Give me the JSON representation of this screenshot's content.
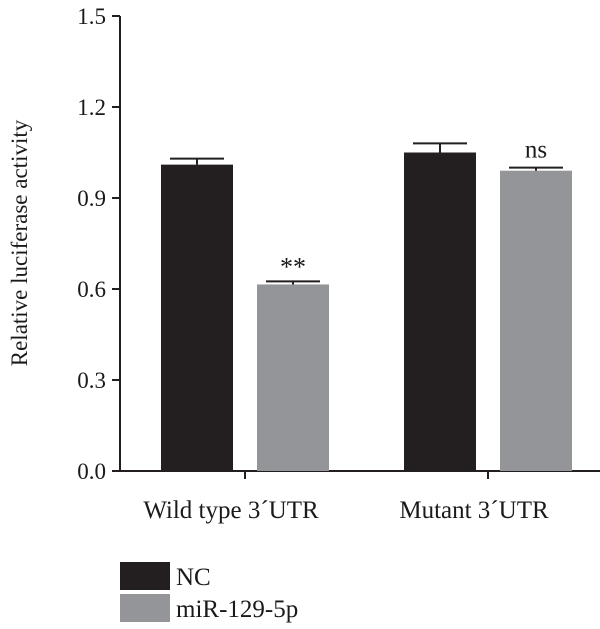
{
  "chart_data": {
    "type": "bar",
    "title": "",
    "xlabel": "",
    "ylabel": "Relative luciferase activity",
    "ylim": [
      0,
      1.5
    ],
    "yticks": [
      "0.0",
      "0.3",
      "0.6",
      "0.9",
      "1.2",
      "1.5"
    ],
    "categories": [
      "Wild type 3´UTR",
      "Mutant 3´UTR"
    ],
    "series": [
      {
        "name": "NC",
        "color": "#231f20",
        "values": [
          1.01,
          1.05
        ],
        "errors": [
          0.02,
          0.03
        ]
      },
      {
        "name": "miR-129-5p",
        "color": "#939598",
        "values": [
          0.615,
          0.99
        ],
        "errors": [
          0.01,
          0.01
        ]
      }
    ],
    "annotations": [
      {
        "category": 0,
        "series": 1,
        "text": "**"
      },
      {
        "category": 1,
        "series": 1,
        "text": "ns"
      }
    ],
    "grid": false,
    "legend_position": "bottom-left"
  }
}
